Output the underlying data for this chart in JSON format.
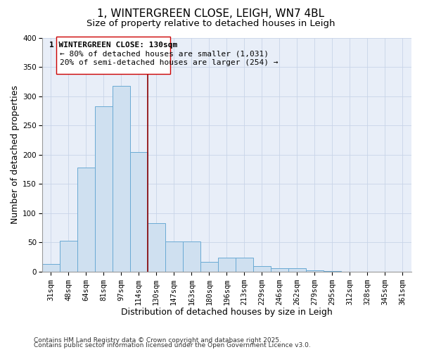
{
  "title": "1, WINTERGREEN CLOSE, LEIGH, WN7 4BL",
  "subtitle": "Size of property relative to detached houses in Leigh",
  "xlabel": "Distribution of detached houses by size in Leigh",
  "ylabel": "Number of detached properties",
  "categories": [
    "31sqm",
    "48sqm",
    "64sqm",
    "81sqm",
    "97sqm",
    "114sqm",
    "130sqm",
    "147sqm",
    "163sqm",
    "180sqm",
    "196sqm",
    "213sqm",
    "229sqm",
    "246sqm",
    "262sqm",
    "279sqm",
    "295sqm",
    "312sqm",
    "328sqm",
    "345sqm",
    "361sqm"
  ],
  "values": [
    13,
    53,
    178,
    283,
    318,
    204,
    83,
    51,
    51,
    16,
    24,
    24,
    9,
    5,
    5,
    2,
    1,
    0,
    0,
    0,
    0
  ],
  "bar_color": "#cfe0f0",
  "bar_edge_color": "#6aaad4",
  "vline_color": "#8b0000",
  "ylim": [
    0,
    400
  ],
  "yticks": [
    0,
    50,
    100,
    150,
    200,
    250,
    300,
    350,
    400
  ],
  "annotation_title": "1 WINTERGREEN CLOSE: 130sqm",
  "annotation_line1": "← 80% of detached houses are smaller (1,031)",
  "annotation_line2": "20% of semi-detached houses are larger (254) →",
  "footer1": "Contains HM Land Registry data © Crown copyright and database right 2025.",
  "footer2": "Contains public sector information licensed under the Open Government Licence v3.0.",
  "background_color": "#ffffff",
  "grid_color": "#c8d4e8",
  "title_fontsize": 11,
  "subtitle_fontsize": 9.5,
  "axis_label_fontsize": 9,
  "tick_fontsize": 7.5,
  "annotation_fontsize": 8,
  "footer_fontsize": 6.5
}
